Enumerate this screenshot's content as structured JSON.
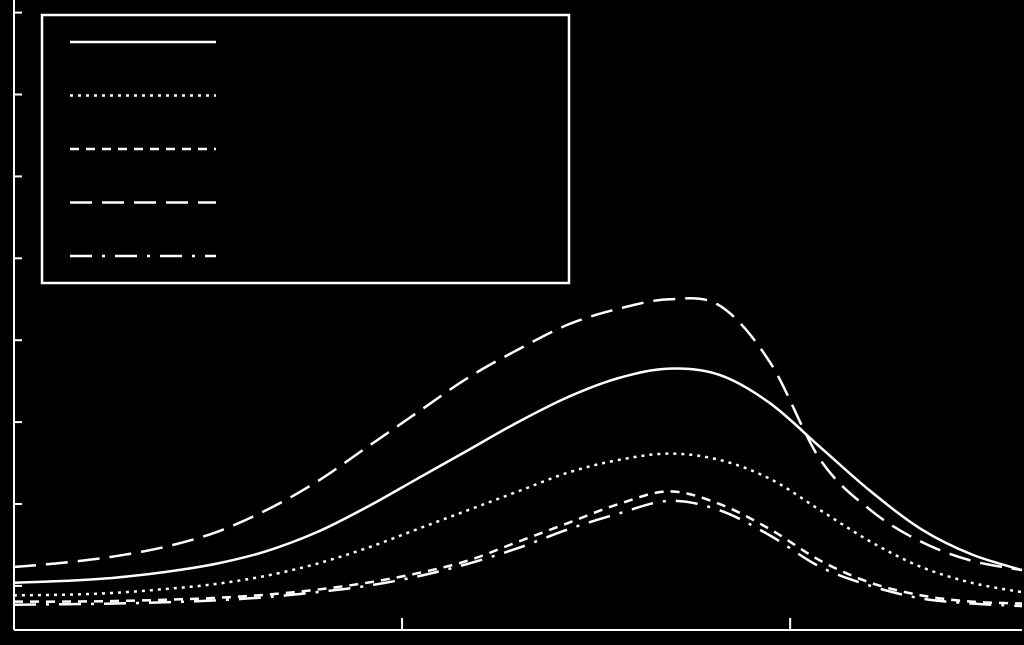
{
  "chart_data": {
    "type": "line",
    "title": "",
    "xlabel": "",
    "ylabel": "",
    "xlim": [
      0,
      1
    ],
    "ylim": [
      0,
      1
    ],
    "grid": false,
    "legend": {
      "placement": "top-left",
      "entries": [
        {
          "style": "solid"
        },
        {
          "style": "dotted"
        },
        {
          "style": "short-dash"
        },
        {
          "style": "long-dash"
        },
        {
          "style": "dash-dot"
        }
      ]
    },
    "x": [
      0.0,
      0.05,
      0.1,
      0.15,
      0.2,
      0.25,
      0.3,
      0.35,
      0.4,
      0.45,
      0.5,
      0.55,
      0.6,
      0.65,
      0.7,
      0.75,
      0.8,
      0.85,
      0.9,
      0.95,
      1.0
    ],
    "series": [
      {
        "style": "solid",
        "values": [
          0.075,
          0.078,
          0.083,
          0.092,
          0.105,
          0.125,
          0.155,
          0.195,
          0.24,
          0.285,
          0.33,
          0.37,
          0.4,
          0.415,
          0.405,
          0.36,
          0.29,
          0.22,
          0.16,
          0.12,
          0.095
        ]
      },
      {
        "style": "dotted",
        "values": [
          0.055,
          0.056,
          0.059,
          0.065,
          0.073,
          0.086,
          0.105,
          0.13,
          0.16,
          0.19,
          0.22,
          0.25,
          0.27,
          0.28,
          0.27,
          0.24,
          0.19,
          0.14,
          0.1,
          0.075,
          0.06
        ]
      },
      {
        "style": "short-dash",
        "values": [
          0.045,
          0.045,
          0.046,
          0.048,
          0.051,
          0.056,
          0.064,
          0.075,
          0.09,
          0.11,
          0.14,
          0.17,
          0.2,
          0.22,
          0.2,
          0.16,
          0.11,
          0.075,
          0.055,
          0.045,
          0.042
        ]
      },
      {
        "style": "long-dash",
        "values": [
          0.1,
          0.107,
          0.117,
          0.132,
          0.155,
          0.19,
          0.235,
          0.29,
          0.345,
          0.4,
          0.445,
          0.485,
          0.51,
          0.525,
          0.515,
          0.425,
          0.27,
          0.19,
          0.14,
          0.11,
          0.095
        ]
      },
      {
        "style": "dash-dot",
        "values": [
          0.04,
          0.041,
          0.042,
          0.044,
          0.047,
          0.052,
          0.06,
          0.07,
          0.085,
          0.105,
          0.13,
          0.16,
          0.185,
          0.205,
          0.19,
          0.15,
          0.1,
          0.07,
          0.05,
          0.042,
          0.038
        ]
      }
    ]
  }
}
